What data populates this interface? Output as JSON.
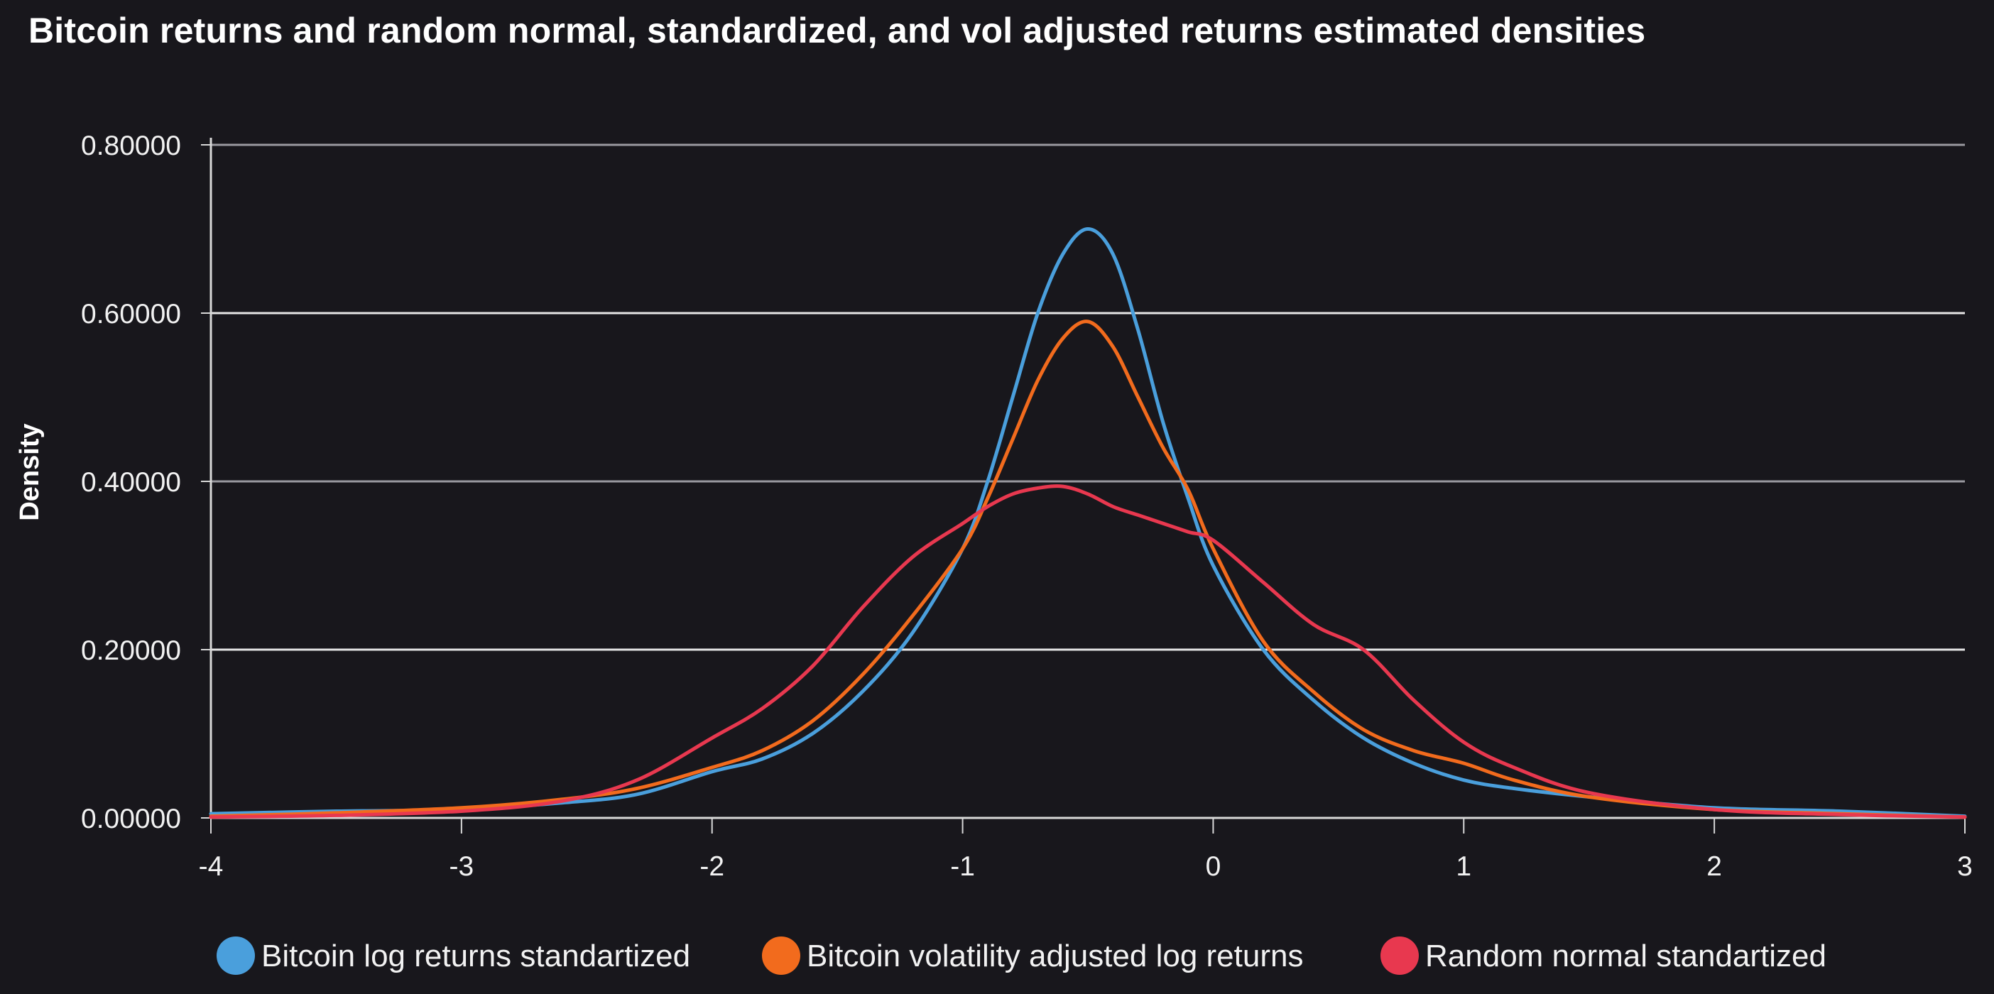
{
  "chart_data": {
    "type": "line",
    "title": "Bitcoin returns and random normal, standardized, and vol adjusted returns estimated densities",
    "xlabel": "",
    "ylabel": "Density",
    "xlim": [
      -4,
      3
    ],
    "ylim": [
      0,
      0.8
    ],
    "x_ticks": [
      -4,
      -3,
      -2,
      -1,
      0,
      1,
      2,
      3
    ],
    "x_tick_labels": [
      "-4",
      "-3",
      "-2",
      "-1",
      "0",
      "1",
      "2",
      "3"
    ],
    "y_ticks": [
      0,
      0.2,
      0.4,
      0.6,
      0.8
    ],
    "y_tick_labels": [
      "0.00000",
      "0.20000",
      "0.40000",
      "0.60000",
      "0.80000"
    ],
    "grid": "horizontal",
    "legend_position": "bottom-center",
    "series": [
      {
        "name": "Bitcoin log returns standartized",
        "color": "#4a9fdc",
        "x": [
          -4,
          -3.5,
          -3,
          -2.6,
          -2.3,
          -2,
          -1.8,
          -1.6,
          -1.4,
          -1.2,
          -1,
          -0.9,
          -0.8,
          -0.7,
          -0.6,
          -0.5,
          -0.4,
          -0.3,
          -0.2,
          -0.1,
          0,
          0.2,
          0.4,
          0.6,
          0.8,
          1,
          1.2,
          1.5,
          2,
          2.5,
          3
        ],
        "y": [
          0.005,
          0.008,
          0.01,
          0.018,
          0.028,
          0.055,
          0.07,
          0.1,
          0.15,
          0.22,
          0.32,
          0.4,
          0.5,
          0.6,
          0.67,
          0.7,
          0.67,
          0.58,
          0.47,
          0.38,
          0.3,
          0.2,
          0.14,
          0.095,
          0.065,
          0.045,
          0.035,
          0.025,
          0.012,
          0.008,
          0.002
        ]
      },
      {
        "name": "Bitcoin volatility adjusted log returns",
        "color": "#f26b1d",
        "x": [
          -4,
          -3.5,
          -3,
          -2.6,
          -2.3,
          -2,
          -1.8,
          -1.6,
          -1.4,
          -1.2,
          -1,
          -0.9,
          -0.8,
          -0.7,
          -0.6,
          -0.5,
          -0.4,
          -0.3,
          -0.2,
          -0.1,
          0,
          0.2,
          0.4,
          0.6,
          0.8,
          1,
          1.2,
          1.5,
          2,
          2.5,
          3
        ],
        "y": [
          0.002,
          0.006,
          0.012,
          0.022,
          0.035,
          0.06,
          0.08,
          0.115,
          0.17,
          0.24,
          0.32,
          0.38,
          0.45,
          0.52,
          0.57,
          0.59,
          0.56,
          0.5,
          0.44,
          0.39,
          0.32,
          0.21,
          0.15,
          0.105,
          0.08,
          0.065,
          0.045,
          0.025,
          0.01,
          0.005,
          0.001
        ]
      },
      {
        "name": "Random normal standartized",
        "color": "#e8384f",
        "x": [
          -4,
          -3.5,
          -3,
          -2.6,
          -2.3,
          -2,
          -1.8,
          -1.6,
          -1.4,
          -1.2,
          -1,
          -0.9,
          -0.8,
          -0.7,
          -0.6,
          -0.5,
          -0.4,
          -0.3,
          -0.2,
          -0.1,
          0,
          0.2,
          0.4,
          0.6,
          0.8,
          1,
          1.2,
          1.5,
          2,
          2.5,
          3
        ],
        "y": [
          0.001,
          0.003,
          0.008,
          0.02,
          0.045,
          0.095,
          0.13,
          0.18,
          0.25,
          0.31,
          0.35,
          0.37,
          0.385,
          0.392,
          0.394,
          0.385,
          0.37,
          0.36,
          0.35,
          0.34,
          0.33,
          0.28,
          0.23,
          0.2,
          0.14,
          0.09,
          0.06,
          0.03,
          0.01,
          0.004,
          0.001
        ]
      }
    ]
  }
}
